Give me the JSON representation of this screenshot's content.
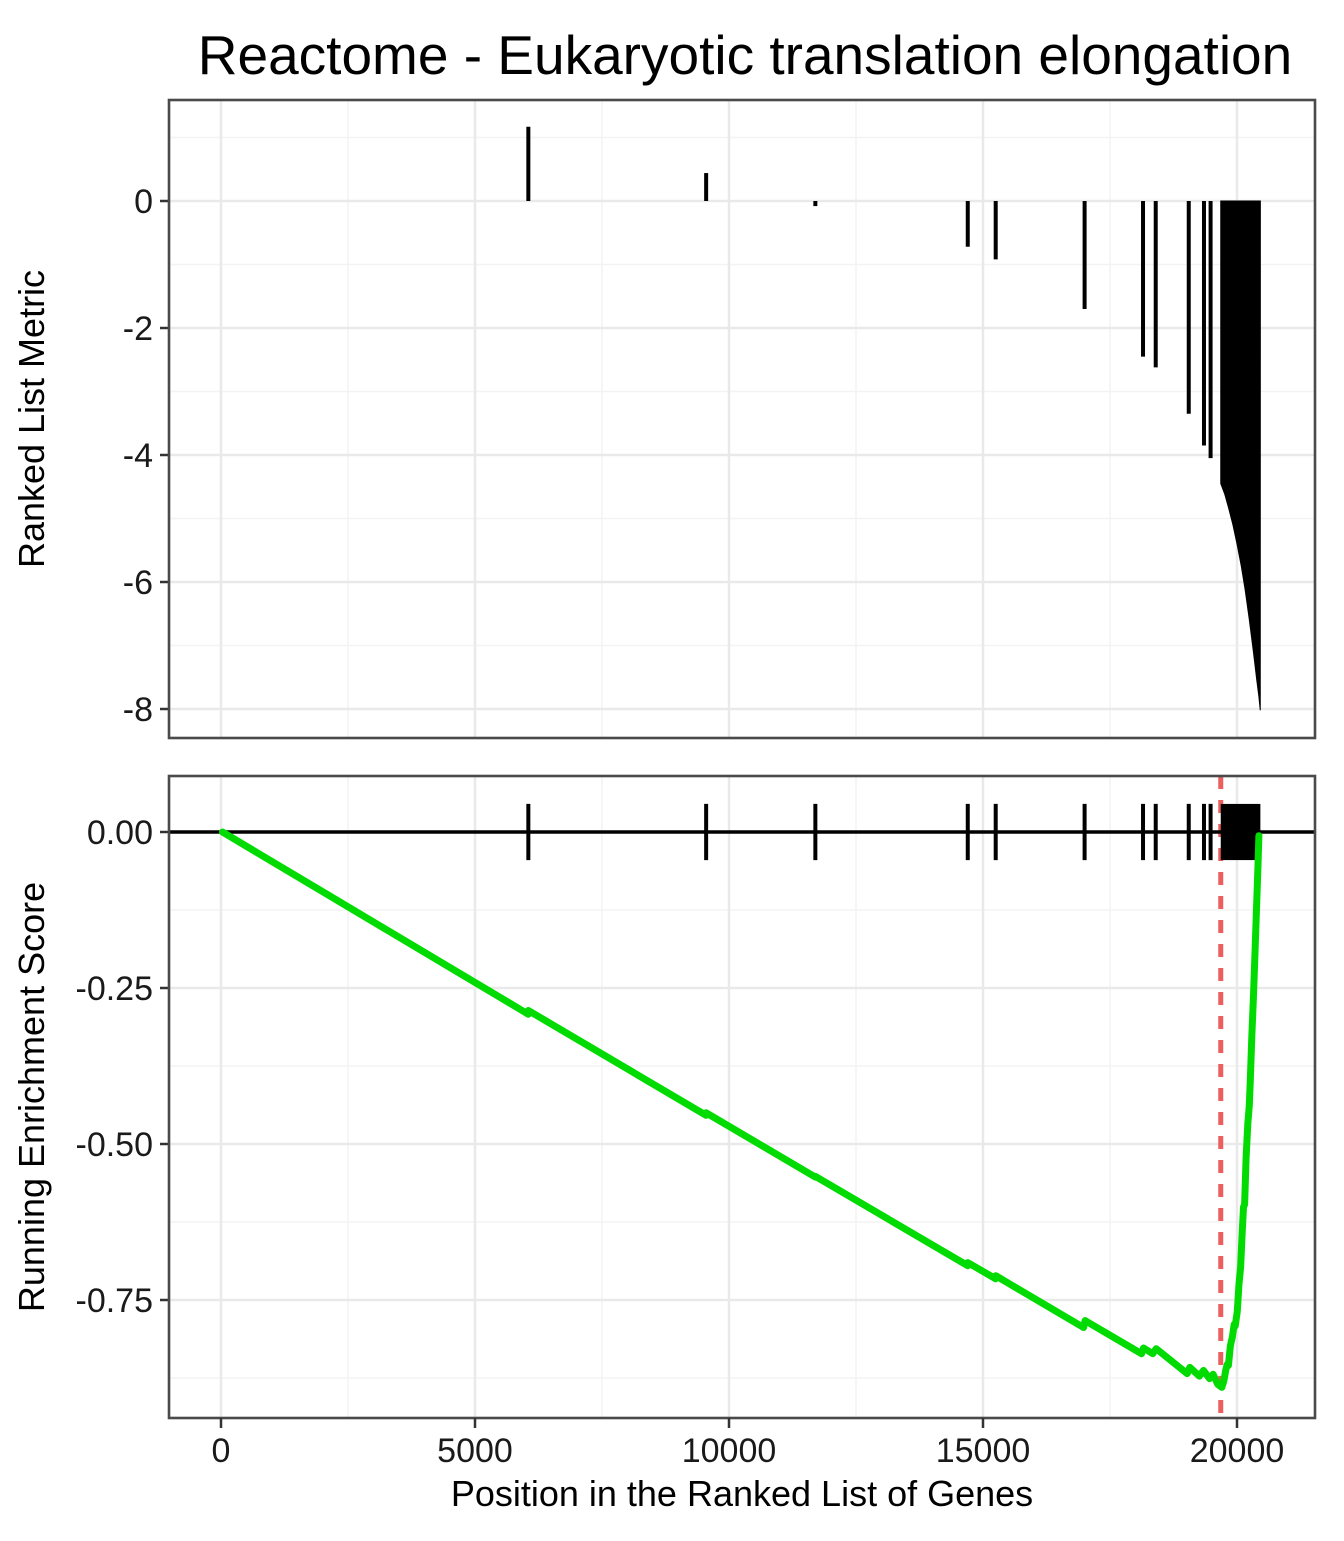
{
  "title": "Reactome - Eukaryotic translation elongation",
  "colors": {
    "es_line_green": "#02db02",
    "leading_edge_red": "#ec5f5f",
    "bars_black": "#000000",
    "grid_major": "#e9e9e9",
    "grid_minor": "#f3f3f3",
    "panel_border": "#4a4a4a",
    "zero_line": "#000000",
    "background": "#ffffff"
  },
  "x_axis": {
    "title": "Position in the Ranked List of Genes",
    "tick_values": [
      0,
      5000,
      10000,
      15000,
      20000
    ],
    "tick_labels": [
      "0",
      "5000",
      "10000",
      "15000",
      "20000"
    ],
    "minor_values": [
      2500,
      7500,
      12500,
      17500
    ],
    "range": [
      -1020,
      21530
    ]
  },
  "chart_data": [
    {
      "type": "bar",
      "panel": "top",
      "title": "Reactome - Eukaryotic translation elongation",
      "xlabel": "",
      "ylabel": "Ranked List Metric",
      "ylim": [
        -8.45,
        1.6
      ],
      "y_tick_values": [
        0,
        -2,
        -4,
        -6,
        -8
      ],
      "y_tick_labels": [
        "0",
        "-2",
        "-4",
        "-6",
        "-8"
      ],
      "y_minor_values": [
        1,
        -1,
        -3,
        -5,
        -7
      ],
      "grid": true,
      "bars": [
        {
          "x": 6050,
          "value": 1.17
        },
        {
          "x": 9550,
          "value": 0.44
        },
        {
          "x": 11700,
          "value": -0.08
        },
        {
          "x": 14700,
          "value": -0.72
        },
        {
          "x": 15250,
          "value": -0.92
        },
        {
          "x": 17000,
          "value": -1.7
        },
        {
          "x": 18150,
          "value": -2.45
        },
        {
          "x": 18400,
          "value": -2.62
        },
        {
          "x": 19050,
          "value": -3.35
        },
        {
          "x": 19350,
          "value": -3.85
        },
        {
          "x": 19480,
          "value": -4.05
        }
      ],
      "dense_block": {
        "x_start": 19680,
        "x_end": 20460,
        "top_value": 0,
        "bottom_envelope": [
          [
            19680,
            -4.45
          ],
          [
            19760,
            -4.62
          ],
          [
            19840,
            -4.85
          ],
          [
            19920,
            -5.1
          ],
          [
            20000,
            -5.4
          ],
          [
            20080,
            -5.73
          ],
          [
            20160,
            -6.12
          ],
          [
            20240,
            -6.58
          ],
          [
            20320,
            -7.08
          ],
          [
            20390,
            -7.55
          ],
          [
            20430,
            -7.8
          ],
          [
            20458,
            -8.02
          ]
        ]
      }
    },
    {
      "type": "line",
      "panel": "bottom",
      "xlabel": "Position in the Ranked List of Genes",
      "ylabel": "Running Enrichment Score",
      "ylim": [
        -0.94,
        0.09
      ],
      "y_tick_values": [
        0.0,
        -0.25,
        -0.5,
        -0.75
      ],
      "y_tick_labels": [
        "0.00",
        "-0.25",
        "-0.50",
        "-0.75"
      ],
      "y_minor_values": [
        -0.125,
        -0.375,
        -0.625,
        -0.875
      ],
      "grid": true,
      "zero_line_y": 0,
      "hit_positions": [
        6050,
        9550,
        11700,
        14700,
        15250,
        17000,
        18150,
        18400,
        19050,
        19350,
        19480
      ],
      "hit_tick_half_height": 0.045,
      "hit_block": {
        "x_start": 19680,
        "x_end": 20460,
        "half_height": 0.045
      },
      "leading_edge_line": {
        "x": 19680,
        "style": "dashed"
      },
      "min_es": -0.89,
      "min_es_x": 19700,
      "series": [
        {
          "name": "running_enrichment_score",
          "points": [
            [
              30,
              0
            ],
            [
              6050,
              -0.292
            ],
            [
              6050,
              -0.286
            ],
            [
              9550,
              -0.454
            ],
            [
              9550,
              -0.45
            ],
            [
              11700,
              -0.553
            ],
            [
              11700,
              -0.552
            ],
            [
              14700,
              -0.695
            ],
            [
              14700,
              -0.69
            ],
            [
              15250,
              -0.716
            ],
            [
              15250,
              -0.711
            ],
            [
              16980,
              -0.794
            ],
            [
              17010,
              -0.783
            ],
            [
              18120,
              -0.836
            ],
            [
              18160,
              -0.827
            ],
            [
              18340,
              -0.836
            ],
            [
              18410,
              -0.828
            ],
            [
              19020,
              -0.868
            ],
            [
              19070,
              -0.858
            ],
            [
              19260,
              -0.872
            ],
            [
              19340,
              -0.863
            ],
            [
              19460,
              -0.876
            ],
            [
              19530,
              -0.869
            ],
            [
              19620,
              -0.885
            ],
            [
              19700,
              -0.89
            ],
            [
              19740,
              -0.88
            ],
            [
              19780,
              -0.862
            ],
            [
              19810,
              -0.853
            ],
            [
              19830,
              -0.855
            ],
            [
              19870,
              -0.823
            ],
            [
              19910,
              -0.809
            ],
            [
              19945,
              -0.789
            ],
            [
              19965,
              -0.792
            ],
            [
              20005,
              -0.768
            ],
            [
              20040,
              -0.724
            ],
            [
              20070,
              -0.698
            ],
            [
              20100,
              -0.645
            ],
            [
              20128,
              -0.601
            ],
            [
              20150,
              -0.597
            ],
            [
              20180,
              -0.522
            ],
            [
              20212,
              -0.468
            ],
            [
              20242,
              -0.438
            ],
            [
              20262,
              -0.398
            ],
            [
              20292,
              -0.328
            ],
            [
              20322,
              -0.266
            ],
            [
              20352,
              -0.198
            ],
            [
              20382,
              -0.128
            ],
            [
              20412,
              -0.058
            ],
            [
              20432,
              -0.006
            ]
          ]
        }
      ]
    }
  ]
}
